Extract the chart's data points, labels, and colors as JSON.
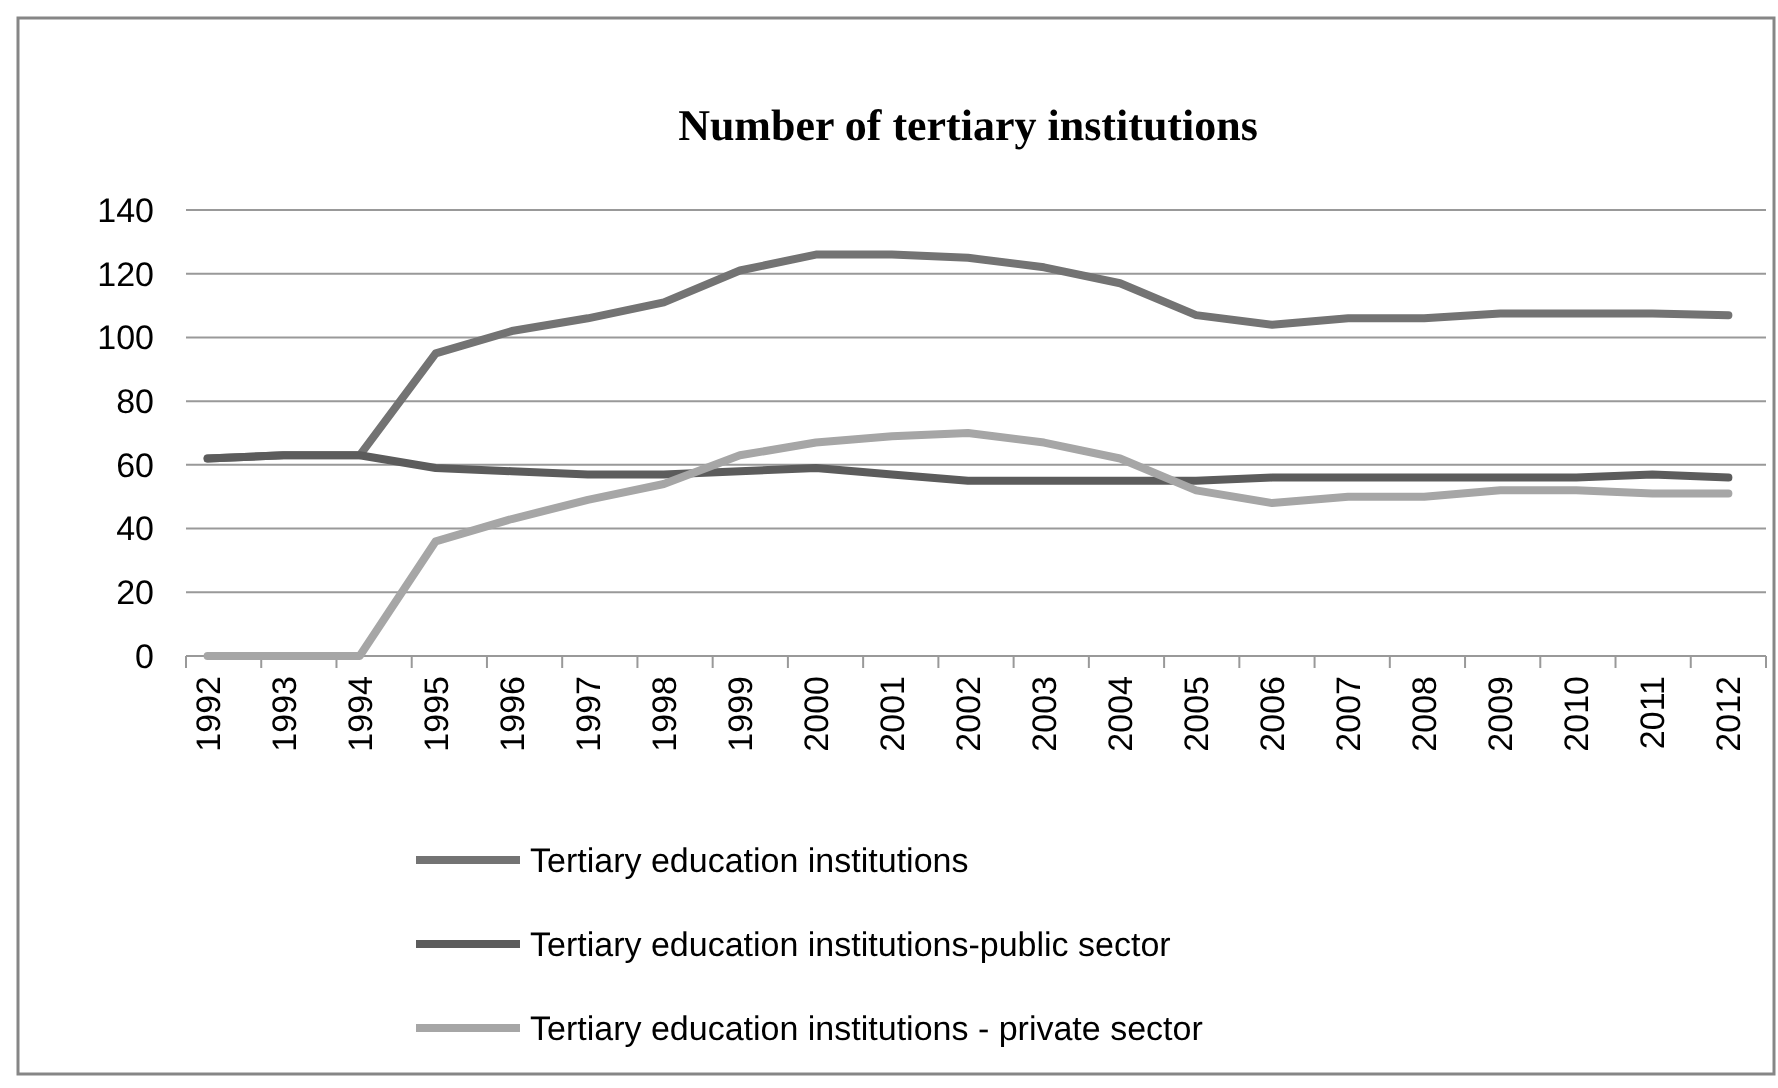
{
  "chart_data": {
    "type": "line",
    "title": "Number of tertiary institutions",
    "categories": [
      "1992",
      "1993",
      "1994",
      "1995",
      "1996",
      "1997",
      "1998",
      "1999",
      "2000",
      "2001",
      "2002",
      "2003",
      "2004",
      "2005",
      "2006",
      "2007",
      "2008",
      "2009",
      "2010",
      "2011",
      "2012"
    ],
    "series": [
      {
        "name": "Tertiary education institutions",
        "color": "#737373",
        "values": [
          62,
          63,
          63,
          95,
          102,
          106,
          111,
          121,
          126,
          126,
          125,
          122,
          117,
          107,
          104,
          106,
          106,
          107.5,
          107.5,
          107.5,
          107
        ]
      },
      {
        "name": "Tertiary education institutions-public sector",
        "color": "#5c5c5c",
        "values": [
          62,
          63,
          63,
          59,
          58,
          57,
          57,
          58,
          59,
          57,
          55,
          55,
          55,
          55,
          56,
          56,
          56,
          56,
          56,
          57,
          56
        ]
      },
      {
        "name": "Tertiary education institutions - private sector",
        "color": "#a6a6a6",
        "values": [
          0,
          0,
          0,
          36,
          43,
          49,
          54,
          63,
          67,
          69,
          70,
          67,
          62,
          52,
          48,
          50,
          50,
          52,
          52,
          51,
          51
        ]
      }
    ],
    "ylim": [
      0,
      140
    ],
    "yticks": [
      0,
      20,
      40,
      60,
      80,
      100,
      120,
      140
    ],
    "grid": "y",
    "legend": "bottom",
    "line_style": "solid",
    "marker": "none"
  }
}
